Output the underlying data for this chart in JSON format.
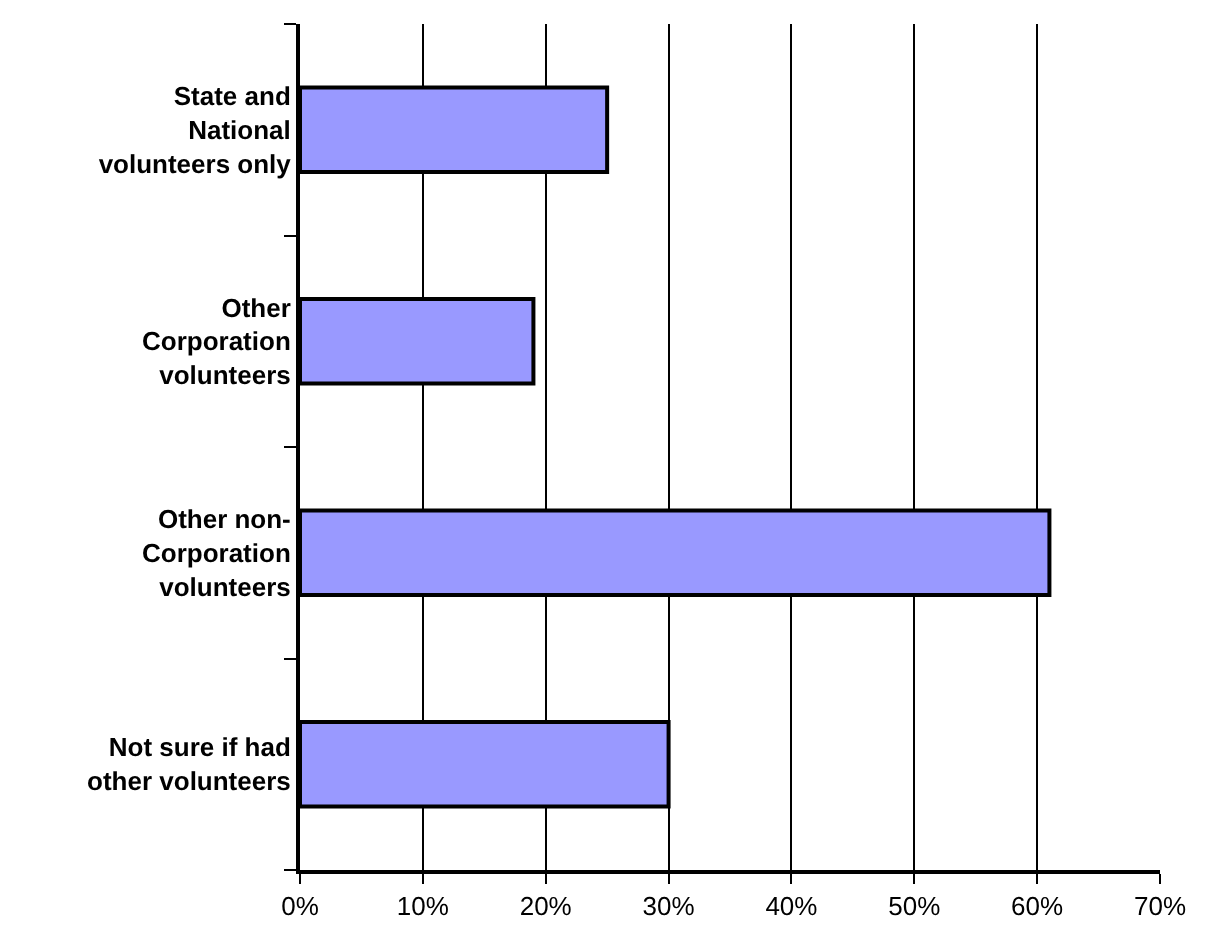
{
  "chart_data": {
    "type": "bar",
    "orientation": "horizontal",
    "categories": [
      "State and National volunteers only",
      "Other Corporation volunteers",
      "Other non-Corporation volunteers",
      "Not sure if had other volunteers"
    ],
    "values": [
      25,
      19,
      61,
      30
    ],
    "color": "#9999ff",
    "xlim": [
      0,
      70
    ],
    "xticks": [
      {
        "value": 0,
        "label": "0%"
      },
      {
        "value": 10,
        "label": "10%"
      },
      {
        "value": 20,
        "label": "20%"
      },
      {
        "value": 30,
        "label": "30%"
      },
      {
        "value": 40,
        "label": "40%"
      },
      {
        "value": 50,
        "label": "50%"
      },
      {
        "value": 60,
        "label": "60%"
      },
      {
        "value": 70,
        "label": "70%"
      }
    ],
    "grid": "x",
    "legend": false
  }
}
